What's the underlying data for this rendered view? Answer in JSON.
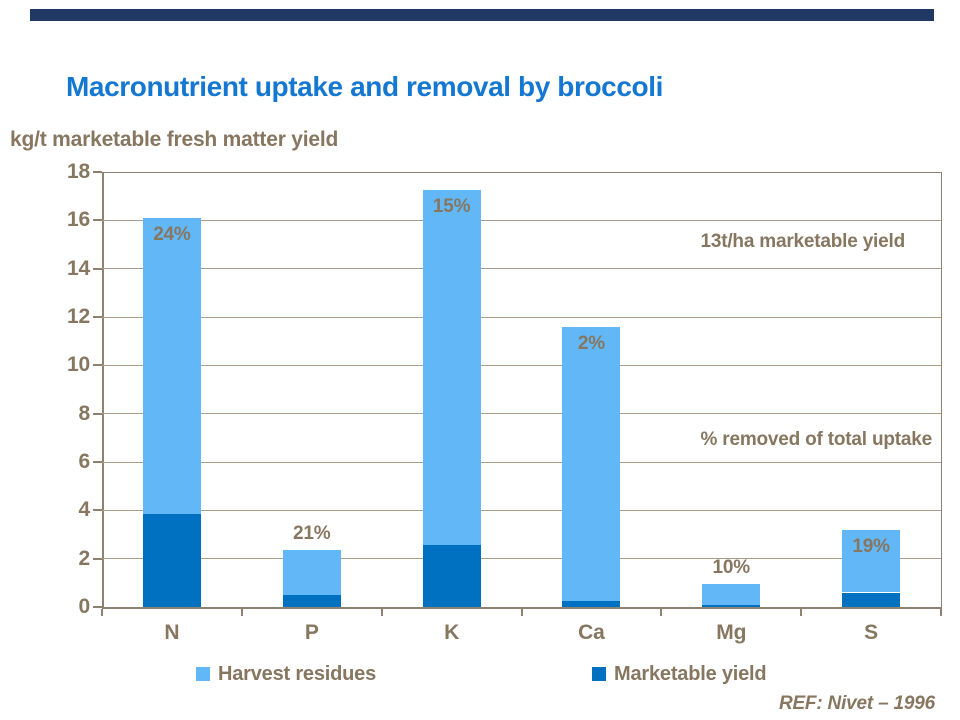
{
  "slide": {
    "title": "Macronutrient uptake and removal by broccoli",
    "y_axis_title": "kg/t marketable fresh matter yield",
    "reference": "REF: Nivet – 1996"
  },
  "annotations": {
    "yield_note": "13t/ha marketable yield",
    "pct_note": "% removed of total uptake"
  },
  "chart_data": {
    "type": "bar",
    "stacked": true,
    "title": "Macronutrient uptake and removal by broccoli",
    "ylabel": "kg/t marketable fresh matter yield",
    "xlabel": "",
    "categories": [
      "N",
      "P",
      "K",
      "Ca",
      "Mg",
      "S"
    ],
    "series": [
      {
        "name": "Marketable yield",
        "color": "#0070C0",
        "stack_order": "bottom",
        "values": [
          3.85,
          0.5,
          2.55,
          0.25,
          0.1,
          0.6
        ]
      },
      {
        "name": "Harvest residues",
        "color": "#62B7F7",
        "stack_order": "top",
        "values": [
          12.25,
          1.85,
          14.7,
          11.35,
          0.85,
          2.6
        ]
      }
    ],
    "totals": [
      16.1,
      2.35,
      17.25,
      11.6,
      0.95,
      3.2
    ],
    "percent_removed_labels": [
      {
        "text": "24%",
        "placement": "inside"
      },
      {
        "text": "21%",
        "placement": "above"
      },
      {
        "text": "15%",
        "placement": "inside"
      },
      {
        "text": "2%",
        "placement": "inside"
      },
      {
        "text": "10%",
        "placement": "above"
      },
      {
        "text": "19%",
        "placement": "inside"
      }
    ],
    "ylim": [
      0,
      18
    ],
    "yticks": [
      0,
      2,
      4,
      6,
      8,
      10,
      12,
      14,
      16,
      18
    ],
    "grid": true,
    "legend_position": "bottom",
    "legend": [
      {
        "label": "Harvest residues",
        "color": "#62B7F7"
      },
      {
        "label": "Marketable yield",
        "color": "#0070C0"
      }
    ]
  },
  "colors": {
    "accent_bar": "#1F3864",
    "title_blue": "#1477D1",
    "text_brown": "#877660",
    "axis_line": "#8F8170",
    "gridline": "#A89C8B",
    "light_blue": "#62B7F7",
    "dark_blue": "#0070C0"
  }
}
